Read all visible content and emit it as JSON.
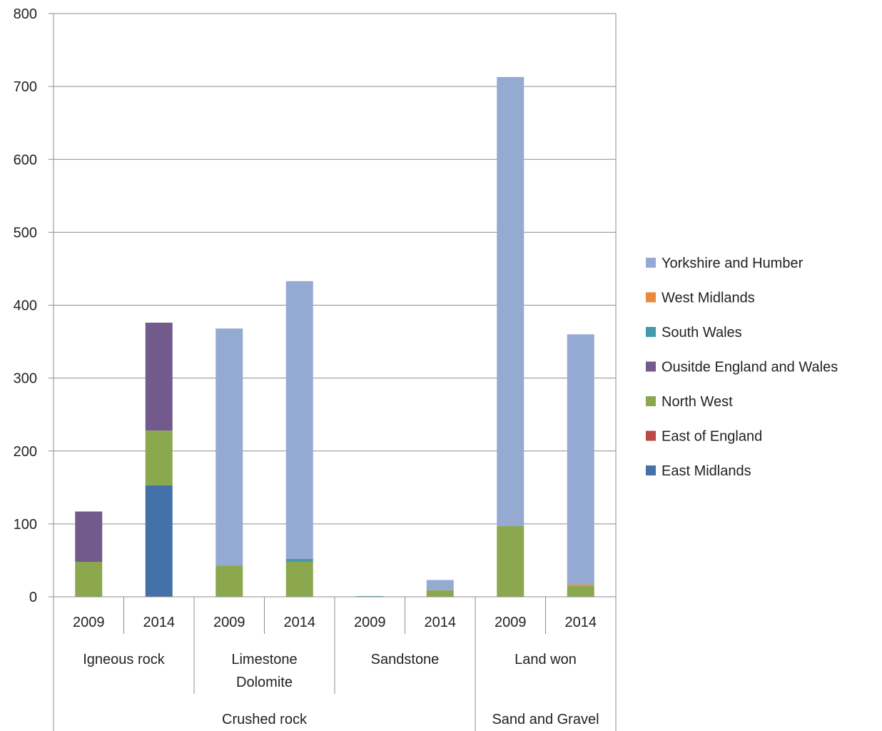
{
  "chart_data": {
    "type": "bar",
    "stacked": true,
    "ylim": [
      0,
      800
    ],
    "yticks": [
      0,
      100,
      200,
      300,
      400,
      500,
      600,
      700,
      800
    ],
    "grid": true,
    "legend_position": "right",
    "title": "",
    "xlabel": "",
    "ylabel": "",
    "categories": [
      "2009",
      "2014",
      "2009",
      "2014",
      "2009",
      "2014",
      "2009",
      "2014"
    ],
    "subgroups": [
      {
        "label": "Igneous rock",
        "start": 0,
        "end": 1
      },
      {
        "label": "Limestone Dolomite",
        "start": 2,
        "end": 3
      },
      {
        "label": "Sandstone",
        "start": 4,
        "end": 5
      },
      {
        "label": "Land won",
        "start": 6,
        "end": 7
      }
    ],
    "groups": [
      {
        "label": "Crushed rock",
        "start": 0,
        "end": 5
      },
      {
        "label": "Sand and Gravel",
        "start": 6,
        "end": 7
      }
    ],
    "series": [
      {
        "name": "East Midlands",
        "color": "#4472A8",
        "values": [
          0,
          153,
          0,
          0,
          0,
          0,
          0,
          0
        ]
      },
      {
        "name": "East of England",
        "color": "#B94A48",
        "values": [
          0,
          0,
          0,
          0,
          0,
          0,
          0,
          0
        ]
      },
      {
        "name": "North West",
        "color": "#8BA84E",
        "values": [
          48,
          75,
          43,
          48,
          0,
          9,
          97,
          15
        ]
      },
      {
        "name": "Ousitde England and Wales",
        "color": "#725A8D",
        "values": [
          69,
          148,
          0,
          0,
          0,
          0,
          0,
          0
        ]
      },
      {
        "name": "South Wales",
        "color": "#4299B0",
        "values": [
          0,
          0,
          0,
          4,
          1,
          0,
          0,
          0
        ]
      },
      {
        "name": "West Midlands",
        "color": "#E88A3E",
        "values": [
          0,
          0,
          0,
          0,
          0,
          0,
          0,
          2
        ]
      },
      {
        "name": "Yorkshire and Humber",
        "color": "#94AAD3",
        "values": [
          0,
          0,
          325,
          381,
          0,
          14,
          616,
          343
        ]
      }
    ]
  }
}
